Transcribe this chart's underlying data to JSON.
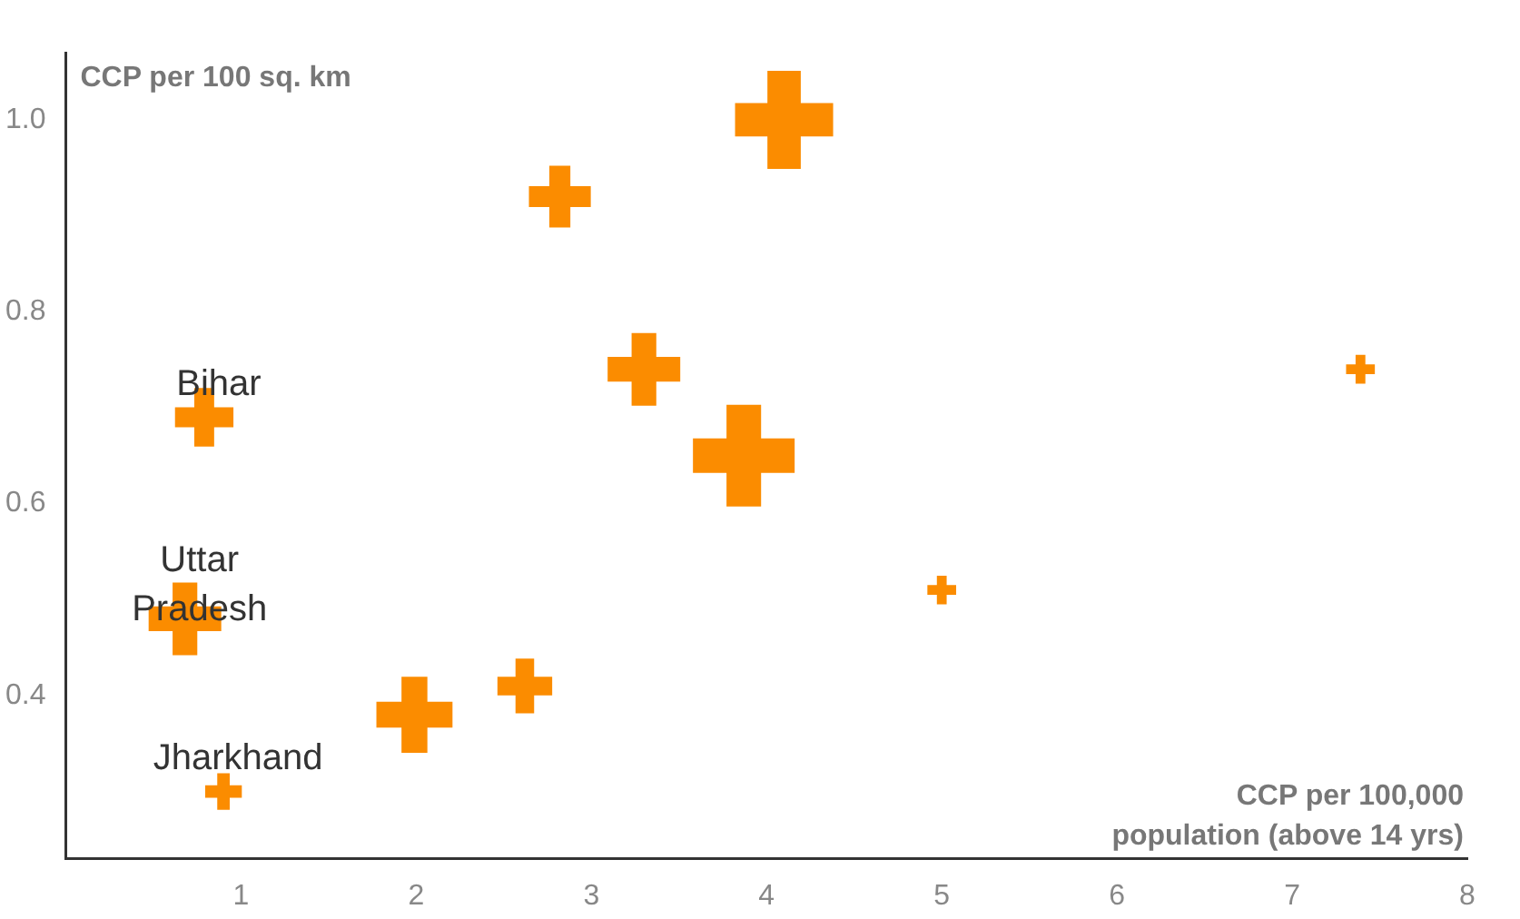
{
  "chart_data": {
    "type": "bubble",
    "xlabel": "CCP per 100,000 population (above 14 yrs)",
    "ylabel": "CCP per 100 sq. km",
    "x": [
      4.1,
      2.82,
      3.3,
      3.87,
      7.39,
      5.0,
      0.79,
      0.68,
      0.9,
      1.99,
      2.62
    ],
    "values": [
      1.0,
      0.92,
      0.74,
      0.65,
      0.74,
      0.51,
      0.69,
      0.48,
      0.3,
      0.38,
      0.41
    ],
    "sizes": [
      0.93,
      0.37,
      0.51,
      1,
      0.08,
      0.08,
      0.33,
      0.51,
      0.13,
      0.56,
      0.29
    ],
    "color": "#fb8c00",
    "marker": "cross",
    "grid": false,
    "legend": false,
    "xlim": [
      0,
      8
    ],
    "xticks": [
      1,
      2,
      3,
      4,
      5,
      6,
      7,
      8
    ],
    "ylim": [
      0.23,
      1.07
    ],
    "yticks": [
      {
        "value": 0.4,
        "label": "0.4"
      },
      {
        "value": 0.6,
        "label": "0.6"
      },
      {
        "value": 0.8,
        "label": "0.8"
      },
      {
        "value": 1.0,
        "label": "1.0"
      }
    ],
    "annotations": [
      {
        "text": "Bihar",
        "x": 0.79,
        "y": 0.69
      },
      {
        "text": "Uttar Pradesh",
        "x": 0.68,
        "y": 0.48
      },
      {
        "text": "Jharkhand",
        "x": 0.9,
        "y": 0.3
      }
    ]
  }
}
